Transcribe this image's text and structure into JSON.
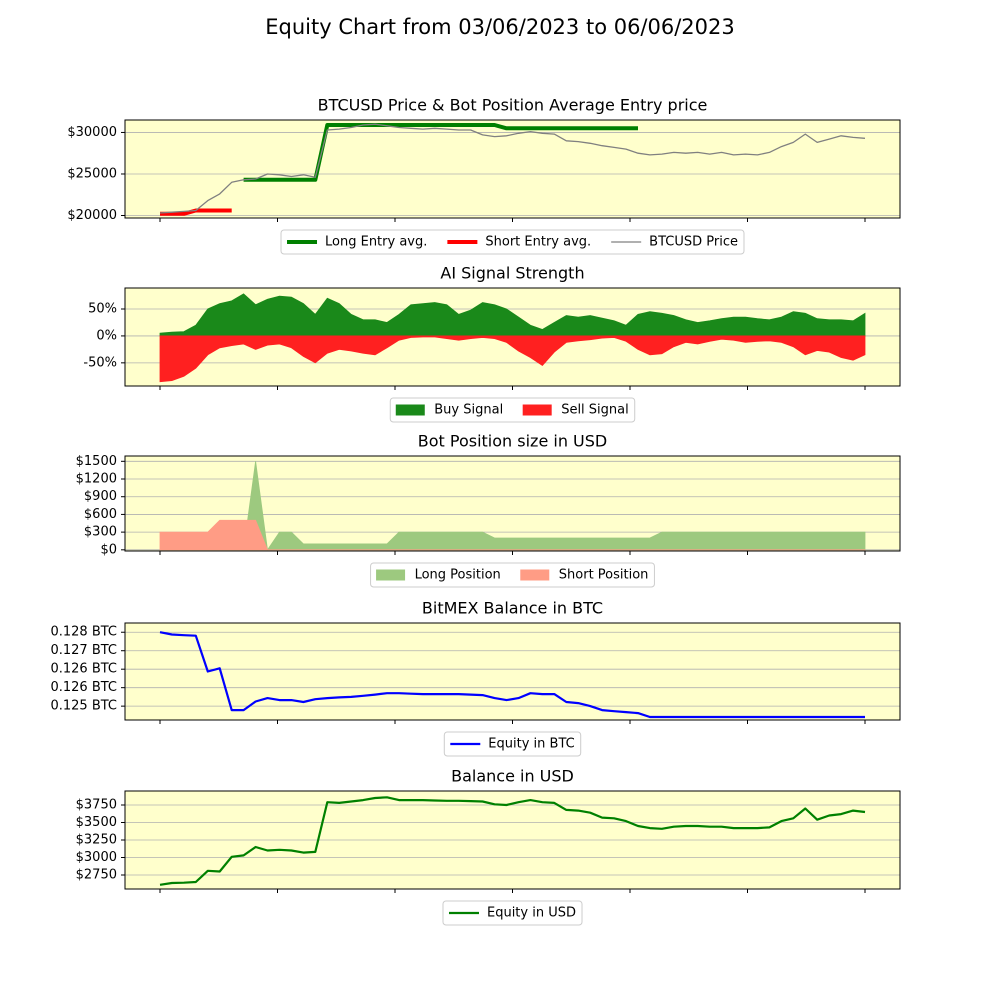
{
  "title": "Equity Chart from 03/06/2023 to 06/06/2023",
  "chart_data": [
    {
      "type": "line",
      "title": "BTCUSD Price & Bot Position Average Entry price",
      "ylim": [
        19700,
        31500
      ],
      "yticks": [
        {
          "value": 20000,
          "label": "$20000"
        },
        {
          "value": 25000,
          "label": "$25000"
        },
        {
          "value": 30000,
          "label": "$30000"
        }
      ],
      "grid": true,
      "legend": "lower center",
      "background": "#ffffcc",
      "series": [
        {
          "name": "Long Entry avg.",
          "color": "#008000",
          "linewidth": 4,
          "values": [
            null,
            null,
            null,
            null,
            null,
            null,
            null,
            24300,
            24300,
            24300,
            24300,
            24300,
            24300,
            24300,
            30900,
            30900,
            30900,
            30900,
            30900,
            30900,
            30900,
            30900,
            30900,
            30900,
            30900,
            30900,
            30900,
            30900,
            30900,
            30500,
            30500,
            30500,
            30500,
            30500,
            30500,
            30500,
            30500,
            30500,
            30500,
            30500,
            30500,
            null,
            null,
            null,
            null,
            null,
            null,
            null,
            null,
            null,
            null,
            null,
            null,
            null,
            null,
            null,
            null,
            null,
            null,
            null
          ]
        },
        {
          "name": "Short Entry avg.",
          "color": "#ff0000",
          "linewidth": 4,
          "values": [
            20200,
            20200,
            20200,
            20600,
            20600,
            20600,
            20600,
            null,
            null,
            null,
            null,
            null,
            null,
            null,
            null,
            null,
            null,
            null,
            null,
            null,
            null,
            null,
            null,
            null,
            null,
            null,
            null,
            null,
            null,
            null,
            null,
            null,
            null,
            null,
            null,
            null,
            null,
            null,
            null,
            null,
            null,
            null,
            null,
            null,
            null,
            null,
            null,
            null,
            null,
            null,
            null,
            null,
            null,
            null,
            null,
            null,
            null,
            null,
            null,
            null
          ]
        },
        {
          "name": "BTCUSD Price",
          "color": "#808080",
          "linewidth": 1.3,
          "values": [
            20300,
            20400,
            20500,
            20600,
            21800,
            22600,
            24000,
            24300,
            24400,
            25000,
            24900,
            24700,
            24900,
            24600,
            30300,
            30400,
            30600,
            30900,
            31000,
            30800,
            30600,
            30500,
            30400,
            30500,
            30400,
            30300,
            30300,
            29700,
            29500,
            29600,
            29900,
            30100,
            29900,
            29800,
            29000,
            28900,
            28700,
            28400,
            28200,
            28000,
            27500,
            27300,
            27400,
            27600,
            27500,
            27600,
            27400,
            27600,
            27300,
            27400,
            27300,
            27600,
            28300,
            28800,
            29800,
            28800,
            29200,
            29600,
            29400,
            29300
          ]
        }
      ]
    },
    {
      "type": "area",
      "title": "AI Signal Strength",
      "ylim": [
        -93,
        89
      ],
      "yticks": [
        {
          "value": -50,
          "label": "-50%"
        },
        {
          "value": 0,
          "label": "0%"
        },
        {
          "value": 50,
          "label": "50%"
        }
      ],
      "grid": true,
      "legend": "lower center",
      "background": "#ffffcc",
      "series": [
        {
          "name": "Buy Signal",
          "color": "#1a891a",
          "values": [
            5,
            7,
            8,
            20,
            50,
            60,
            65,
            78,
            58,
            68,
            74,
            72,
            60,
            40,
            70,
            60,
            40,
            30,
            30,
            25,
            40,
            58,
            60,
            62,
            58,
            40,
            48,
            62,
            58,
            50,
            35,
            20,
            12,
            25,
            38,
            35,
            38,
            33,
            28,
            20,
            40,
            45,
            42,
            38,
            30,
            25,
            28,
            32,
            35,
            35,
            32,
            30,
            35,
            45,
            42,
            32,
            30,
            30,
            28,
            42
          ]
        },
        {
          "name": "Sell Signal",
          "color": "#ff2020",
          "values": [
            -85,
            -83,
            -75,
            -60,
            -35,
            -22,
            -18,
            -15,
            -25,
            -17,
            -15,
            -22,
            -38,
            -50,
            -32,
            -25,
            -28,
            -32,
            -35,
            -22,
            -8,
            -3,
            -2,
            -2,
            -5,
            -8,
            -5,
            -3,
            -5,
            -12,
            -28,
            -40,
            -55,
            -30,
            -12,
            -9,
            -7,
            -4,
            -3,
            -10,
            -25,
            -35,
            -33,
            -20,
            -12,
            -15,
            -10,
            -6,
            -8,
            -12,
            -10,
            -9,
            -12,
            -20,
            -35,
            -27,
            -30,
            -40,
            -45,
            -35
          ]
        }
      ]
    },
    {
      "type": "area",
      "title": "Bot Position size in USD",
      "ylim": [
        -20,
        1590
      ],
      "yticks": [
        {
          "value": 0,
          "label": "$0"
        },
        {
          "value": 300,
          "label": "$300"
        },
        {
          "value": 600,
          "label": "$600"
        },
        {
          "value": 900,
          "label": "$900"
        },
        {
          "value": 1200,
          "label": "$1200"
        },
        {
          "value": 1500,
          "label": "$1500"
        }
      ],
      "grid": true,
      "legend": "lower center",
      "background": "#ffffcc",
      "series": [
        {
          "name": "Long Position",
          "color": "#9dc97f",
          "values": [
            0,
            0,
            0,
            0,
            0,
            0,
            0,
            0,
            1500,
            0,
            300,
            300,
            100,
            100,
            100,
            100,
            100,
            100,
            100,
            100,
            300,
            300,
            300,
            300,
            300,
            300,
            300,
            300,
            200,
            200,
            200,
            200,
            200,
            200,
            200,
            200,
            200,
            200,
            200,
            200,
            200,
            200,
            300,
            300,
            300,
            300,
            300,
            300,
            300,
            300,
            300,
            300,
            300,
            300,
            300,
            300,
            300,
            300,
            300,
            300
          ]
        },
        {
          "name": "Short Position",
          "color": "#ff9c85",
          "values": [
            300,
            300,
            300,
            300,
            300,
            500,
            500,
            500,
            500,
            0,
            0,
            0,
            0,
            0,
            0,
            0,
            0,
            0,
            0,
            0,
            0,
            0,
            0,
            0,
            0,
            0,
            0,
            0,
            0,
            0,
            0,
            0,
            0,
            0,
            0,
            0,
            0,
            0,
            0,
            0,
            0,
            0,
            0,
            0,
            0,
            0,
            0,
            0,
            0,
            0,
            0,
            0,
            0,
            0,
            0,
            0,
            0,
            0,
            0,
            0
          ]
        }
      ]
    },
    {
      "type": "line",
      "title": "BitMEX Balance in BTC",
      "ylim": [
        0.1242,
        0.1284
      ],
      "yticks": [
        {
          "value": 0.1248,
          "label": "0.125 BTC"
        },
        {
          "value": 0.1256,
          "label": "0.126 BTC"
        },
        {
          "value": 0.1264,
          "label": "0.126 BTC"
        },
        {
          "value": 0.1272,
          "label": "0.127 BTC"
        },
        {
          "value": 0.128,
          "label": "0.128 BTC"
        }
      ],
      "grid": true,
      "legend": "lower center",
      "background": "#ffffcc",
      "series": [
        {
          "name": "Equity in BTC",
          "color": "#0000ff",
          "linewidth": 2.2,
          "values": [
            0.128,
            0.1279,
            0.12787,
            0.12785,
            0.1263,
            0.12644,
            0.12463,
            0.12463,
            0.125,
            0.12515,
            0.12506,
            0.12506,
            0.12498,
            0.1251,
            0.12515,
            0.12518,
            0.1252,
            0.12525,
            0.1253,
            0.12536,
            0.12536,
            0.12534,
            0.12532,
            0.12532,
            0.12532,
            0.12532,
            0.1253,
            0.12528,
            0.12515,
            0.12506,
            0.12515,
            0.12536,
            0.12532,
            0.12532,
            0.12498,
            0.12493,
            0.1248,
            0.12463,
            0.12458,
            0.12454,
            0.1245,
            0.12433,
            0.12433,
            0.12433,
            0.12433,
            0.12433,
            0.12433,
            0.12433,
            0.12433,
            0.12433,
            0.12433,
            0.12433,
            0.12433,
            0.12433,
            0.12433,
            0.12433,
            0.12433,
            0.12433,
            0.12433,
            0.12433
          ]
        }
      ]
    },
    {
      "type": "line",
      "title": "Balance in USD",
      "ylim": [
        2550,
        3950
      ],
      "yticks": [
        {
          "value": 2750,
          "label": "$2750"
        },
        {
          "value": 3000,
          "label": "$3000"
        },
        {
          "value": 3250,
          "label": "$3250"
        },
        {
          "value": 3500,
          "label": "$3500"
        },
        {
          "value": 3750,
          "label": "$3750"
        }
      ],
      "grid": true,
      "legend": "lower center",
      "background": "#ffffcc",
      "series": [
        {
          "name": "Equity in USD",
          "color": "#008000",
          "linewidth": 2.2,
          "values": [
            2610,
            2636,
            2640,
            2650,
            2810,
            2800,
            3010,
            3030,
            3150,
            3100,
            3110,
            3100,
            3070,
            3080,
            3790,
            3780,
            3800,
            3820,
            3850,
            3860,
            3820,
            3820,
            3820,
            3815,
            3810,
            3810,
            3805,
            3800,
            3760,
            3750,
            3790,
            3820,
            3790,
            3780,
            3680,
            3670,
            3640,
            3570,
            3560,
            3520,
            3450,
            3420,
            3410,
            3440,
            3450,
            3450,
            3440,
            3440,
            3420,
            3420,
            3420,
            3430,
            3520,
            3560,
            3700,
            3540,
            3600,
            3620,
            3670,
            3650
          ]
        }
      ]
    }
  ]
}
